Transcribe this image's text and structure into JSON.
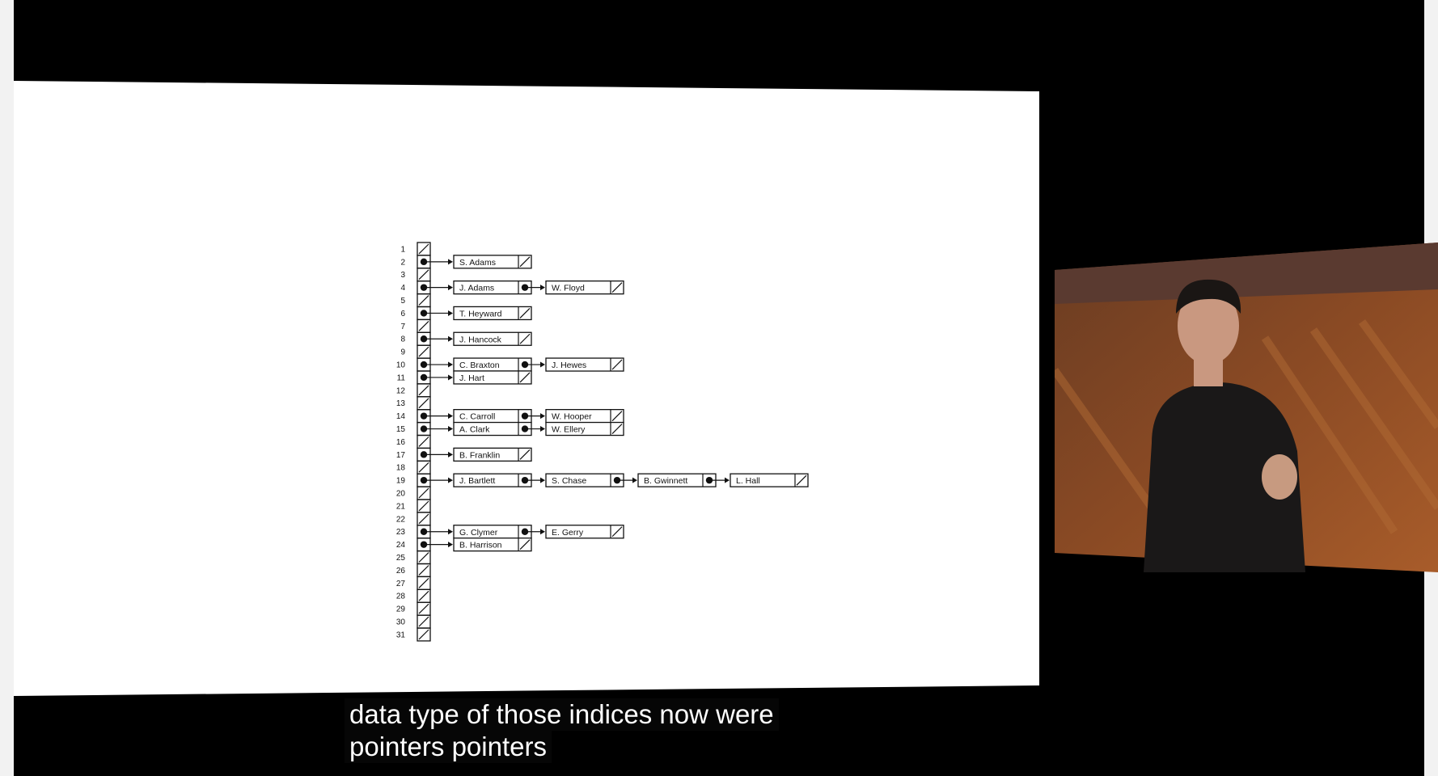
{
  "slide": {
    "index_labels": [
      "1",
      "2",
      "3",
      "4",
      "5",
      "6",
      "7",
      "8",
      "9",
      "10",
      "11",
      "12",
      "13",
      "14",
      "15",
      "16",
      "17",
      "18",
      "19",
      "20",
      "21",
      "22",
      "23",
      "24",
      "25",
      "26",
      "27",
      "28",
      "29",
      "30",
      "31"
    ],
    "chains": [
      {
        "index": 2,
        "names": [
          "S. Adams"
        ]
      },
      {
        "index": 4,
        "names": [
          "J. Adams",
          "W. Floyd"
        ]
      },
      {
        "index": 6,
        "names": [
          "T. Heyward"
        ]
      },
      {
        "index": 8,
        "names": [
          "J. Hancock"
        ]
      },
      {
        "index": 10,
        "names": [
          "C. Braxton",
          "J. Hewes"
        ]
      },
      {
        "index": 11,
        "names": [
          "J. Hart"
        ]
      },
      {
        "index": 14,
        "names": [
          "C. Carroll",
          "W. Hooper"
        ]
      },
      {
        "index": 15,
        "names": [
          "A. Clark",
          "W. Ellery"
        ]
      },
      {
        "index": 17,
        "names": [
          "B. Franklin"
        ]
      },
      {
        "index": 19,
        "names": [
          "J. Bartlett",
          "S. Chase",
          "B. Gwinnett",
          "L. Hall"
        ]
      },
      {
        "index": 23,
        "names": [
          "G. Clymer",
          "E. Gerry"
        ]
      },
      {
        "index": 24,
        "names": [
          "B. Harrison"
        ]
      }
    ]
  },
  "speaker": {
    "description_icon": "speaker-video-icon"
  },
  "caption": {
    "line1": "data type of those indices now were",
    "line2": "pointers pointers"
  }
}
